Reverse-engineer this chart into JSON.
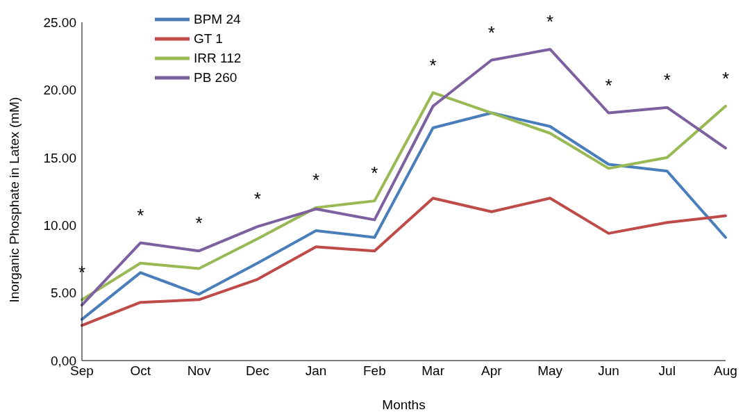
{
  "chart_data": {
    "type": "line",
    "xlabel": "Months",
    "ylabel": "Inorganic Phosphate in Latex (mM)",
    "categories": [
      "Sep",
      "Oct",
      "Nov",
      "Dec",
      "Jan",
      "Feb",
      "Mar",
      "Apr",
      "May",
      "Jun",
      "Jul",
      "Aug"
    ],
    "series": [
      {
        "name": "BPM 24",
        "color": "#4a7ebb",
        "values": [
          3.05,
          6.5,
          4.9,
          7.2,
          9.6,
          9.1,
          17.2,
          18.3,
          17.3,
          14.5,
          14.0,
          9.1
        ]
      },
      {
        "name": "GT 1",
        "color": "#be4b48",
        "values": [
          2.6,
          4.3,
          4.5,
          6.0,
          8.4,
          8.1,
          12.0,
          11.0,
          12.0,
          9.4,
          10.2,
          10.7
        ]
      },
      {
        "name": "IRR 112",
        "color": "#98b954",
        "values": [
          4.5,
          7.2,
          6.8,
          9.0,
          11.3,
          11.8,
          19.8,
          18.3,
          16.8,
          14.2,
          15.0,
          18.8
        ]
      },
      {
        "name": "PB 260",
        "color": "#7d60a0",
        "values": [
          4.1,
          8.7,
          8.1,
          9.9,
          11.2,
          10.4,
          18.8,
          22.2,
          23.0,
          18.3,
          18.7,
          15.7
        ]
      }
    ],
    "ylim": [
      0,
      25
    ],
    "yticks": [
      {
        "value": 0,
        "label": "0,00"
      },
      {
        "value": 5,
        "label": "5.00"
      },
      {
        "value": 10,
        "label": "10.00"
      },
      {
        "value": 15,
        "label": "15.00"
      },
      {
        "value": 20,
        "label": "20.00"
      },
      {
        "value": 25,
        "label": "25.00"
      }
    ],
    "annotations": [
      "*",
      "*",
      "*",
      "*",
      "*",
      "*",
      "*",
      "*",
      "*",
      "*",
      "*",
      "*"
    ],
    "grid": false,
    "legend": "top left",
    "marker": "none",
    "line_style": "solid"
  }
}
